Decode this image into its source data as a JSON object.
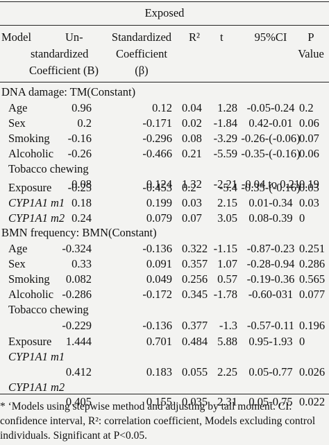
{
  "title": "Exposed",
  "headers": {
    "model": "Model",
    "unstd": [
      "Un-",
      "standardized",
      "Coefficient (B)"
    ],
    "std": [
      "Standardized",
      "Coefficient",
      "(β)"
    ],
    "r2": "R²",
    "t": "t",
    "ci": "95%CI",
    "p": [
      "P",
      "Value"
    ]
  },
  "sections": [
    {
      "title": "DNA damage: TM(Constant)",
      "rows": [
        {
          "label": "Age",
          "b": "0.96",
          "beta": "0.12",
          "r2": "0.04",
          "t": "1.28",
          "ci": "-0.05-0.24",
          "p": "0.2"
        },
        {
          "label": "Sex",
          "b": "0.2",
          "beta": "-0.171",
          "r2": "0.02",
          "t": "-1.84",
          "ci": "0.42-0.01",
          "p": "0.06"
        },
        {
          "label": "Smoking",
          "b": "-0.16",
          "beta": "-0.296",
          "r2": "0.08",
          "t": "-3.29",
          "ci": "-0.26-(-0.06)",
          "p": "0.07"
        },
        {
          "label": "Alcoholic",
          "b": "-0.26",
          "beta": "-0.466",
          "r2": "0.21",
          "t": "-5.59",
          "ci": "-0.35-(-0.16)",
          "p": "0.06"
        },
        {
          "label": "Tobacco chewing",
          "b": "0.08",
          "beta": "0.124",
          "r2": "1.32",
          "t": "-2.21",
          "ci": "-0.04 to 0.21",
          "p": "0.19"
        },
        {
          "label": "Exposure",
          "b": "-0.25",
          "beta": "-0.453",
          "r2": "0.2",
          "t": "-5.4",
          "ci": "-0.35-(-0.16)",
          "p": "0.03"
        },
        {
          "label": "CYP1A1 m1",
          "b": "0.18",
          "beta": "0.199",
          "r2": "0.03",
          "t": "2.15",
          "ci": "0.01-0.34",
          "p": "0.03"
        },
        {
          "label": "CYP1A1 m2",
          "b": "0.24",
          "beta": "0.079",
          "r2": "0.07",
          "t": "3.05",
          "ci": "0.08-0.39",
          "p": "0"
        }
      ]
    },
    {
      "title": "BMN frequency: BMN(Constant)",
      "rows": [
        {
          "label": "Age",
          "b": "-0.324",
          "beta": "-0.136",
          "r2": "0.322",
          "t": "-1.15",
          "ci": "-0.87-0.23",
          "p": "0.251"
        },
        {
          "label": "Sex",
          "b": "0.33",
          "beta": "0.091",
          "r2": "0.357",
          "t": "1.07",
          "ci": "-0.28-0.94",
          "p": "0.286"
        },
        {
          "label": "Smoking",
          "b": "0.082",
          "beta": "0.049",
          "r2": "0.256",
          "t": "0.57",
          "ci": "-0.19-0.36",
          "p": "0.565"
        },
        {
          "label": "Alcoholic",
          "b": "-0.286",
          "beta": "-0.172",
          "r2": "0.345",
          "t": "-1.78",
          "ci": "-0.60-031",
          "p": "0.077"
        },
        {
          "label": "Tobacco chewing",
          "b": "-0.229",
          "beta": "-0.136",
          "r2": "0.377",
          "t": "-1.3",
          "ci": "-0.57-0.11",
          "p": "0.196"
        },
        {
          "label": "Exposure",
          "b": "1.444",
          "beta": "0.701",
          "r2": "0.484",
          "t": "5.88",
          "ci": "0.95-1.93",
          "p": "0"
        },
        {
          "label": "CYP1A1 m1",
          "b": "0.412",
          "beta": "0.183",
          "r2": "0.055",
          "t": "2.25",
          "ci": "0.05-0.77",
          "p": "0.026"
        },
        {
          "label": "CYP1A1 m2",
          "b": "0.405",
          "beta": "0.155",
          "r2": "0.035",
          "t": "2.31",
          "ci": "0.05-0.75",
          "p": "0.022"
        }
      ]
    }
  ],
  "footnote": [
    "* ‘Models using stepwise method and adjusting by tail moment. CI:",
    "confidence interval, R²: correlation coefficient, Models excluding control",
    "individuals. Significant at P<0.05."
  ]
}
